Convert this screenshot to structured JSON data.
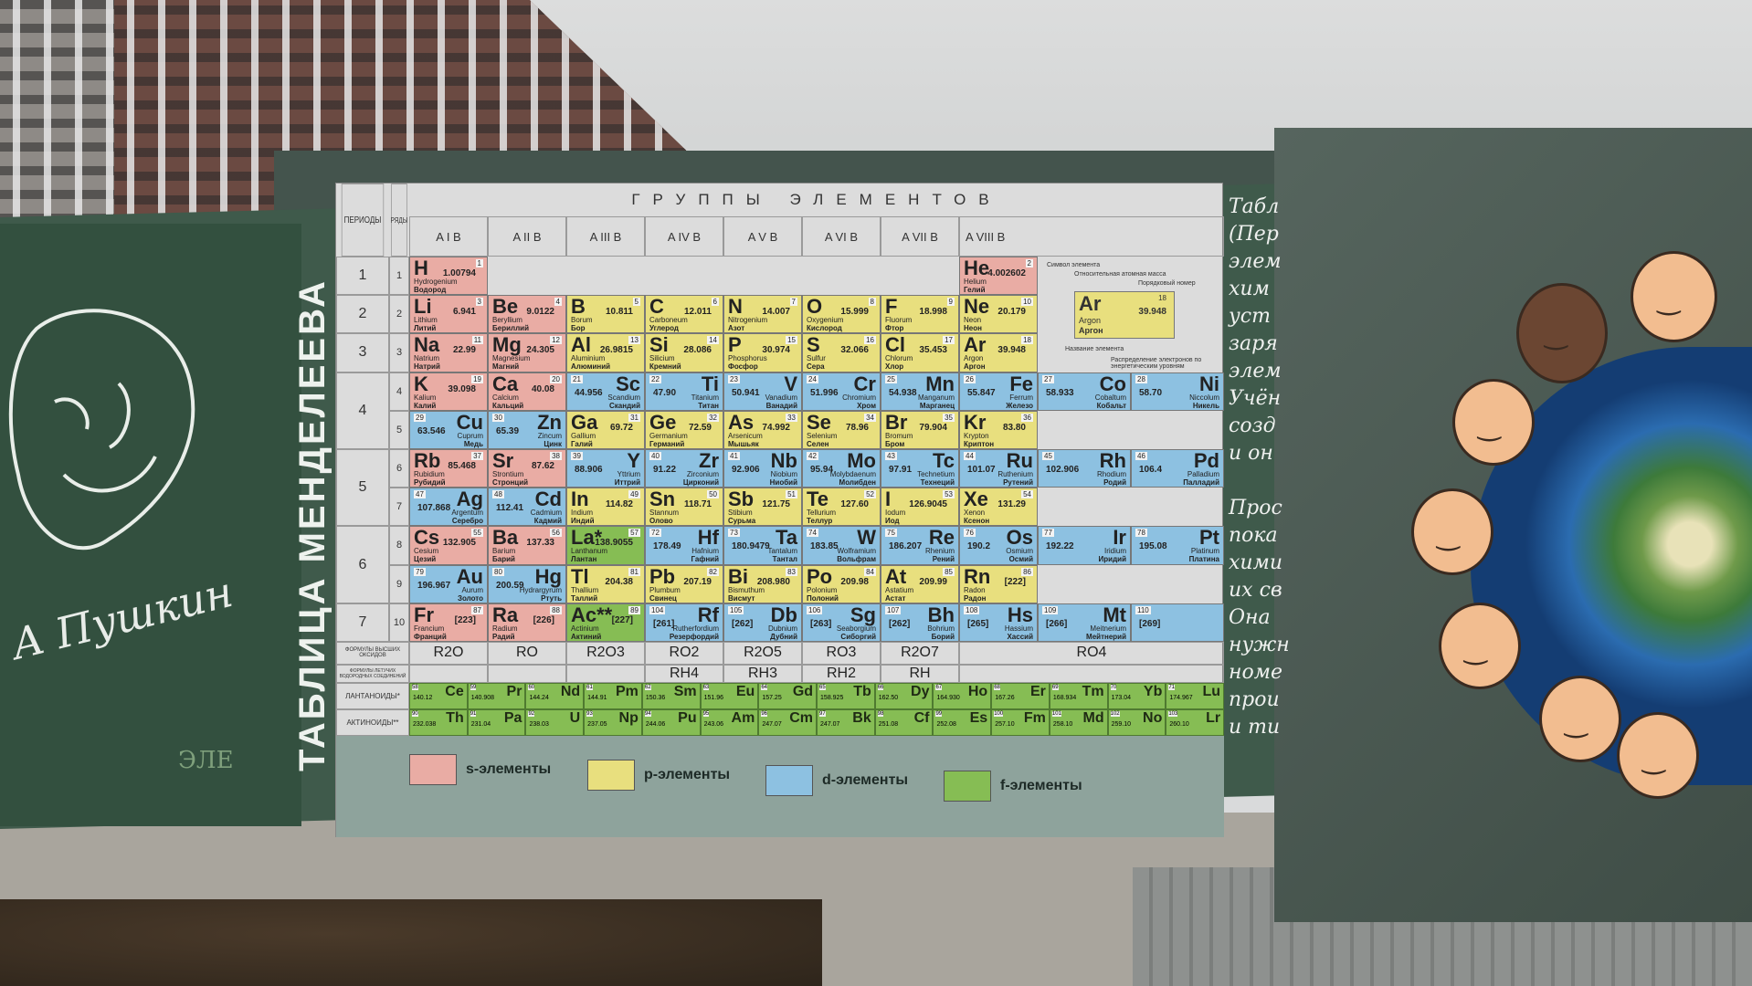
{
  "banner": {
    "title": "ТАБЛИЦА МЕНДЕЛЕЕВА",
    "signature": "А Пушкин",
    "logo": "ЭЛЕ",
    "right_text": [
      "Табл",
      "(Пер",
      "элем",
      "хим",
      "уст",
      "заря",
      "элем",
      "Учён",
      "созд",
      "и он",
      "",
      "Прос",
      "пока",
      "хими",
      "их св",
      "Она",
      "нужн",
      "номе",
      "прои",
      "и ти"
    ]
  },
  "table": {
    "groups_title": "ГРУППЫ ЭЛЕМЕНТОВ",
    "periods_label": "ПЕРИОДЫ",
    "rows_label": "РЯДЫ",
    "group_labels": [
      "A I B",
      "A II B",
      "A III B",
      "A IV B",
      "A V B",
      "A VI B",
      "A VII B",
      "A VIII B"
    ],
    "periods": [
      "1",
      "2",
      "3",
      "4",
      "5",
      "6",
      "7"
    ],
    "ryads": [
      "1",
      "2",
      "3",
      "4",
      "5",
      "6",
      "7",
      "8",
      "9",
      "10"
    ],
    "scheme": {
      "symbol": "Ar",
      "mass": "39.948",
      "number": "18",
      "latin": "Argon",
      "russian": "Аргон",
      "labels": [
        "Символ элемента",
        "Относительная атомная масса",
        "Порядковый номер",
        "Название элемента",
        "Распределение электронов по энергетическим уровням"
      ]
    },
    "rows": [
      [
        [
          "H",
          1,
          "1.00794",
          "Hydrogenium",
          "Водород",
          "s"
        ],
        null,
        null,
        null,
        null,
        null,
        null,
        [
          "He",
          2,
          "4.002602",
          "Helium",
          "Гелий",
          "s"
        ]
      ],
      [
        [
          "Li",
          3,
          "6.941",
          "Lithium",
          "Литий",
          "s"
        ],
        [
          "Be",
          4,
          "9.0122",
          "Beryllium",
          "Бериллий",
          "s"
        ],
        [
          "B",
          5,
          "10.811",
          "Borum",
          "Бор",
          "p"
        ],
        [
          "C",
          6,
          "12.011",
          "Carboneum",
          "Углерод",
          "p"
        ],
        [
          "N",
          7,
          "14.007",
          "Nitrogenium",
          "Азот",
          "p"
        ],
        [
          "O",
          8,
          "15.999",
          "Oxygenium",
          "Кислород",
          "p"
        ],
        [
          "F",
          9,
          "18.998",
          "Fluorum",
          "Фтор",
          "p"
        ],
        [
          "Ne",
          10,
          "20.179",
          "Neon",
          "Неон",
          "p"
        ]
      ],
      [
        [
          "Na",
          11,
          "22.99",
          "Natrium",
          "Натрий",
          "s"
        ],
        [
          "Mg",
          12,
          "24.305",
          "Magnesium",
          "Магний",
          "s"
        ],
        [
          "Al",
          13,
          "26.9815",
          "Aluminium",
          "Алюминий",
          "p"
        ],
        [
          "Si",
          14,
          "28.086",
          "Silicium",
          "Кремний",
          "p"
        ],
        [
          "P",
          15,
          "30.974",
          "Phosphorus",
          "Фосфор",
          "p"
        ],
        [
          "S",
          16,
          "32.066",
          "Sulfur",
          "Сера",
          "p"
        ],
        [
          "Cl",
          17,
          "35.453",
          "Chlorum",
          "Хлор",
          "p"
        ],
        [
          "Ar",
          18,
          "39.948",
          "Argon",
          "Аргон",
          "p"
        ]
      ],
      [
        [
          "K",
          19,
          "39.098",
          "Kalium",
          "Калий",
          "s"
        ],
        [
          "Ca",
          20,
          "40.08",
          "Calcium",
          "Кальций",
          "s"
        ],
        [
          "Sc",
          21,
          "44.956",
          "Scandium",
          "Скандий",
          "d"
        ],
        [
          "Ti",
          22,
          "47.90",
          "Titanium",
          "Титан",
          "d"
        ],
        [
          "V",
          23,
          "50.941",
          "Vanadium",
          "Ванадий",
          "d"
        ],
        [
          "Cr",
          24,
          "51.996",
          "Chromium",
          "Хром",
          "d"
        ],
        [
          "Mn",
          25,
          "54.938",
          "Manganum",
          "Марганец",
          "d"
        ],
        [
          "Fe",
          26,
          "55.847",
          "Ferrum",
          "Железо",
          "d"
        ],
        [
          "Co",
          27,
          "58.933",
          "Cobaltum",
          "Кобальт",
          "d"
        ],
        [
          "Ni",
          28,
          "58.70",
          "Niccolum",
          "Никель",
          "d"
        ]
      ],
      [
        [
          "Cu",
          29,
          "63.546",
          "Cuprum",
          "Медь",
          "d"
        ],
        [
          "Zn",
          30,
          "65.39",
          "Zincum",
          "Цинк",
          "d"
        ],
        [
          "Ga",
          31,
          "69.72",
          "Gallium",
          "Галий",
          "p"
        ],
        [
          "Ge",
          32,
          "72.59",
          "Germanium",
          "Германий",
          "p"
        ],
        [
          "As",
          33,
          "74.992",
          "Arsenicum",
          "Мышьяк",
          "p"
        ],
        [
          "Se",
          34,
          "78.96",
          "Selenium",
          "Селен",
          "p"
        ],
        [
          "Br",
          35,
          "79.904",
          "Bromum",
          "Бром",
          "p"
        ],
        [
          "Kr",
          36,
          "83.80",
          "Krypton",
          "Криптон",
          "p"
        ]
      ],
      [
        [
          "Rb",
          37,
          "85.468",
          "Rubidium",
          "Рубидий",
          "s"
        ],
        [
          "Sr",
          38,
          "87.62",
          "Strontium",
          "Стронций",
          "s"
        ],
        [
          "Y",
          39,
          "88.906",
          "Yttrium",
          "Иттрий",
          "d"
        ],
        [
          "Zr",
          40,
          "91.22",
          "Zirconium",
          "Цирконий",
          "d"
        ],
        [
          "Nb",
          41,
          "92.906",
          "Niobium",
          "Ниобий",
          "d"
        ],
        [
          "Mo",
          42,
          "95.94",
          "Molybdaenum",
          "Молибден",
          "d"
        ],
        [
          "Tc",
          43,
          "97.91",
          "Technetium",
          "Технеций",
          "d"
        ],
        [
          "Ru",
          44,
          "101.07",
          "Ruthenium",
          "Рутений",
          "d"
        ],
        [
          "Rh",
          45,
          "102.906",
          "Rhodium",
          "Родий",
          "d"
        ],
        [
          "Pd",
          46,
          "106.4",
          "Palladium",
          "Палладий",
          "d"
        ]
      ],
      [
        [
          "Ag",
          47,
          "107.868",
          "Argentum",
          "Серебро",
          "d"
        ],
        [
          "Cd",
          48,
          "112.41",
          "Cadmium",
          "Кадмий",
          "d"
        ],
        [
          "In",
          49,
          "114.82",
          "Indium",
          "Индий",
          "p"
        ],
        [
          "Sn",
          50,
          "118.71",
          "Stannum",
          "Олово",
          "p"
        ],
        [
          "Sb",
          51,
          "121.75",
          "Stibium",
          "Сурьма",
          "p"
        ],
        [
          "Te",
          52,
          "127.60",
          "Tellurium",
          "Теллур",
          "p"
        ],
        [
          "I",
          53,
          "126.9045",
          "Iodum",
          "Иод",
          "p"
        ],
        [
          "Xe",
          54,
          "131.29",
          "Xenon",
          "Ксенон",
          "p"
        ]
      ],
      [
        [
          "Cs",
          55,
          "132.905",
          "Cesium",
          "Цезий",
          "s"
        ],
        [
          "Ba",
          56,
          "137.33",
          "Barium",
          "Барий",
          "s"
        ],
        [
          "La*",
          57,
          "138.9055",
          "Lanthanum",
          "Лантан",
          "f"
        ],
        [
          "Hf",
          72,
          "178.49",
          "Hafnium",
          "Гафний",
          "d"
        ],
        [
          "Ta",
          73,
          "180.9479",
          "Tantalum",
          "Тантал",
          "d"
        ],
        [
          "W",
          74,
          "183.85",
          "Wolframium",
          "Вольфрам",
          "d"
        ],
        [
          "Re",
          75,
          "186.207",
          "Rhenium",
          "Рений",
          "d"
        ],
        [
          "Os",
          76,
          "190.2",
          "Osmium",
          "Осмий",
          "d"
        ],
        [
          "Ir",
          77,
          "192.22",
          "Iridium",
          "Иридий",
          "d"
        ],
        [
          "Pt",
          78,
          "195.08",
          "Platinum",
          "Платина",
          "d"
        ]
      ],
      [
        [
          "Au",
          79,
          "196.967",
          "Aurum",
          "Золото",
          "d"
        ],
        [
          "Hg",
          80,
          "200.59",
          "Hydrargyrum",
          "Ртуть",
          "d"
        ],
        [
          "Tl",
          81,
          "204.38",
          "Thallium",
          "Таллий",
          "p"
        ],
        [
          "Pb",
          82,
          "207.19",
          "Plumbum",
          "Свинец",
          "p"
        ],
        [
          "Bi",
          83,
          "208.980",
          "Bismuthum",
          "Висмут",
          "p"
        ],
        [
          "Po",
          84,
          "209.98",
          "Polonium",
          "Полоний",
          "p"
        ],
        [
          "At",
          85,
          "209.99",
          "Astatium",
          "Астат",
          "p"
        ],
        [
          "Rn",
          86,
          "[222]",
          "Radon",
          "Радон",
          "p"
        ]
      ],
      [
        [
          "Fr",
          87,
          "[223]",
          "Francium",
          "Франций",
          "s"
        ],
        [
          "Ra",
          88,
          "[226]",
          "Radium",
          "Радий",
          "s"
        ],
        [
          "Ac**",
          89,
          "[227]",
          "Actinium",
          "Актиний",
          "f"
        ],
        [
          "Rf",
          104,
          "[261]",
          "Rutherfordium",
          "Резерфордий",
          "d"
        ],
        [
          "Db",
          105,
          "[262]",
          "Dubnium",
          "Дубний",
          "d"
        ],
        [
          "Sg",
          106,
          "[263]",
          "Seaborgium",
          "Сиборгий",
          "d"
        ],
        [
          "Bh",
          107,
          "[262]",
          "Bohrium",
          "Борий",
          "d"
        ],
        [
          "Hs",
          108,
          "[265]",
          "Hassium",
          "Хассий",
          "d"
        ],
        [
          "Mt",
          109,
          "[266]",
          "Meitnerium",
          "Мейтнерий",
          "d"
        ],
        [
          "",
          110,
          "[269]",
          "",
          "",
          "d"
        ]
      ]
    ],
    "oxides_label": "ФОРМУЛЫ ВЫСШИХ ОКСИДОВ",
    "oxides": [
      "R2O",
      "RO",
      "R2O3",
      "RO2",
      "R2O5",
      "RO3",
      "R2O7",
      "RO4"
    ],
    "hydrides_label": "ФОРМУЛЫ ЛЕТУЧИХ ВОДОРОДНЫХ СОЕДИНЕНИЙ",
    "hydrides": [
      "",
      "",
      "",
      "RH4",
      "RH3",
      "RH2",
      "RH",
      ""
    ],
    "lanthanides_label": "ЛАНТАНОИДЫ*",
    "lanthanides": [
      [
        "Ce",
        58,
        "140.12"
      ],
      [
        "Pr",
        59,
        "140.908"
      ],
      [
        "Nd",
        60,
        "144.24"
      ],
      [
        "Pm",
        61,
        "144.91"
      ],
      [
        "Sm",
        62,
        "150.36"
      ],
      [
        "Eu",
        63,
        "151.96"
      ],
      [
        "Gd",
        64,
        "157.25"
      ],
      [
        "Tb",
        65,
        "158.925"
      ],
      [
        "Dy",
        66,
        "162.50"
      ],
      [
        "Ho",
        67,
        "164.930"
      ],
      [
        "Er",
        68,
        "167.26"
      ],
      [
        "Tm",
        69,
        "168.934"
      ],
      [
        "Yb",
        70,
        "173.04"
      ],
      [
        "Lu",
        71,
        "174.967"
      ]
    ],
    "actinides_label": "АКТИНОИДЫ**",
    "actinides": [
      [
        "Th",
        90,
        "232.038"
      ],
      [
        "Pa",
        91,
        "231.04"
      ],
      [
        "U",
        92,
        "238.03"
      ],
      [
        "Np",
        93,
        "237.05"
      ],
      [
        "Pu",
        94,
        "244.06"
      ],
      [
        "Am",
        95,
        "243.06"
      ],
      [
        "Cm",
        96,
        "247.07"
      ],
      [
        "Bk",
        97,
        "247.07"
      ],
      [
        "Cf",
        98,
        "251.08"
      ],
      [
        "Es",
        99,
        "252.08"
      ],
      [
        "Fm",
        100,
        "257.10"
      ],
      [
        "Md",
        101,
        "258.10"
      ],
      [
        "No",
        102,
        "259.10"
      ],
      [
        "Lr",
        103,
        "260.10"
      ]
    ],
    "legend": [
      {
        "label": "s-элементы",
        "color": "#e9aca4"
      },
      {
        "label": "p-элементы",
        "color": "#e8df7e"
      },
      {
        "label": "d-элементы",
        "color": "#8dc1e1"
      },
      {
        "label": "f-элементы",
        "color": "#86bd54"
      }
    ]
  }
}
